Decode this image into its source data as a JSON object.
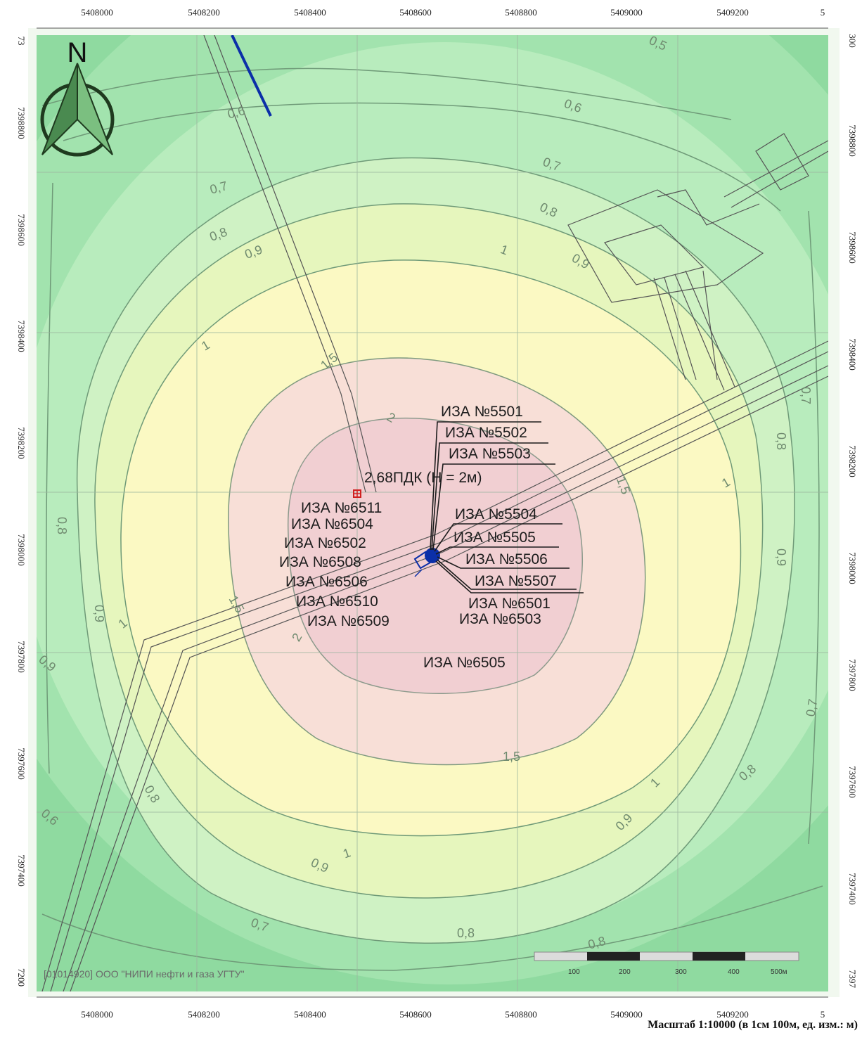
{
  "top_ticks": [
    "5408000",
    "5408200",
    "5408400",
    "5408600",
    "5408800",
    "5409000",
    "5409200",
    "5"
  ],
  "bottom_ticks": [
    "5408000",
    "5408200",
    "5408400",
    "5408600",
    "5408800",
    "5409000",
    "5409200",
    "5"
  ],
  "left_ticks": [
    "73",
    "7398800",
    "7398600",
    "7398400",
    "7398200",
    "7398000",
    "7397800",
    "7397600",
    "7397400",
    "7200"
  ],
  "right_ticks": [
    "300",
    "7398800",
    "7398600",
    "7398400",
    "7398200",
    "7398000",
    "7397800",
    "7397600",
    "7397400",
    "7397"
  ],
  "north_label": "N",
  "contour_labels": [
    "0,5",
    "0,6",
    "0,6",
    "0,7",
    "0,7",
    "0,8",
    "0,8",
    "0,9",
    "0,9",
    "1",
    "1",
    "1,5",
    "2",
    "1",
    "0,9",
    "0,8",
    "0,7",
    "0,8",
    "0,9",
    "1",
    "1,5",
    "2",
    "1,5",
    "1",
    "0,9",
    "0,8",
    "0,7",
    "0,6",
    "0,9",
    "0,8",
    "0,7",
    "0,8",
    "1",
    "0,9",
    "0,8"
  ],
  "pdk_label": "2,68ПДК (Н = 2м)",
  "source_labels_left": [
    "ИЗА №6511",
    "ИЗА №6504",
    "ИЗА №6502",
    "ИЗА №6508",
    "ИЗА №6506",
    "ИЗА №6510",
    "ИЗА №6509"
  ],
  "source_labels_right": [
    "ИЗА №5501",
    "ИЗА №5502",
    "ИЗА №5503",
    "ИЗА №5504",
    "ИЗА №5505",
    "ИЗА №5506",
    "ИЗА №5507",
    "ИЗА №6501",
    "ИЗА №6503"
  ],
  "source_label_bottom": "ИЗА №6505",
  "copyright": "[01014920] ООО \"НИПИ нефти и газа УГТУ\"",
  "scalebar_labels": [
    "100",
    "200",
    "300",
    "400",
    "500м"
  ],
  "scale_note": "Масштаб 1:10000 (в 1см 100м, ед. изм.: м)",
  "colors": {
    "outer": "#8fdaa0",
    "band_06": "#a2e3ae",
    "band_07": "#b8ecbd",
    "band_08": "#cff2c4",
    "band_09": "#e6f6bd",
    "band_1": "#fbf9c3",
    "band_15": "#f8dfd7",
    "band_2": "#f1cfd2",
    "contour_line": "#6f9a78",
    "road_line": "#555555",
    "pipeline": "#0b2fa8",
    "pdk_marker": "#d02020"
  }
}
